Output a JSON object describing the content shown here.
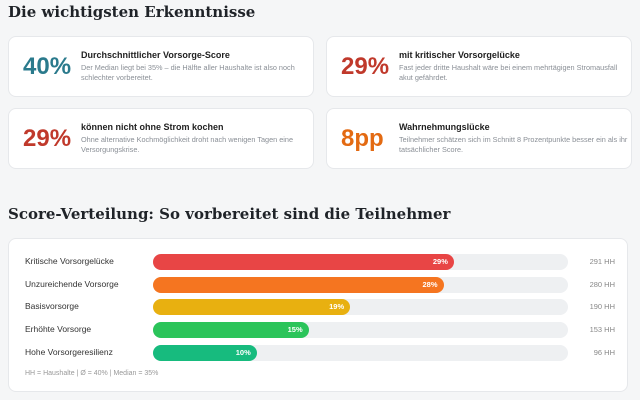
{
  "insights": {
    "title": "Die wichtigsten Erkenntnisse",
    "cards": [
      {
        "value": "40%",
        "color": "#2a7a8c",
        "title": "Durchschnittlicher Vorsorge-Score",
        "desc": "Der Median liegt bei 35% – die Hälfte aller Haushalte ist also noch schlechter vorbereitet."
      },
      {
        "value": "29%",
        "color": "#c0392b",
        "title": "mit kritischer Vorsorgelücke",
        "desc": "Fast jeder dritte Haushalt wäre bei einem mehrtägigen Stromausfall akut gefährdet."
      },
      {
        "value": "29%",
        "color": "#c0392b",
        "title": "können nicht ohne Strom kochen",
        "desc": "Ohne alternative Kochmöglichkeit droht nach wenigen Tagen eine Versorgungskrise."
      },
      {
        "value": "8pp",
        "color": "#e36a12",
        "title": "Wahrnehmungslücke",
        "desc": "Teilnehmer schätzen sich im Schnitt 8 Prozentpunkte besser ein als ihr tatsächlicher Score."
      }
    ]
  },
  "distribution": {
    "title": "Score-Verteilung: So vorbereitet sind die Teilnehmer",
    "footnote": "HH = Haushalte | Ø = 40% | Median = 35%",
    "scale_max_percent": 40,
    "rows": [
      {
        "label": "Kritische Vorsorgelücke",
        "percent": 29,
        "percent_label": "29%",
        "count": "291 HH",
        "color": "#e84545"
      },
      {
        "label": "Unzureichende Vorsorge",
        "percent": 28,
        "percent_label": "28%",
        "count": "280 HH",
        "color": "#f57520"
      },
      {
        "label": "Basisvorsorge",
        "percent": 19,
        "percent_label": "19%",
        "count": "190 HH",
        "color": "#e8b010"
      },
      {
        "label": "Erhöhte Vorsorge",
        "percent": 15,
        "percent_label": "15%",
        "count": "153 HH",
        "color": "#2bc45a"
      },
      {
        "label": "Hohe Vorsorgeresilienz",
        "percent": 10,
        "percent_label": "10%",
        "count": "96 HH",
        "color": "#17bb7e"
      }
    ]
  }
}
